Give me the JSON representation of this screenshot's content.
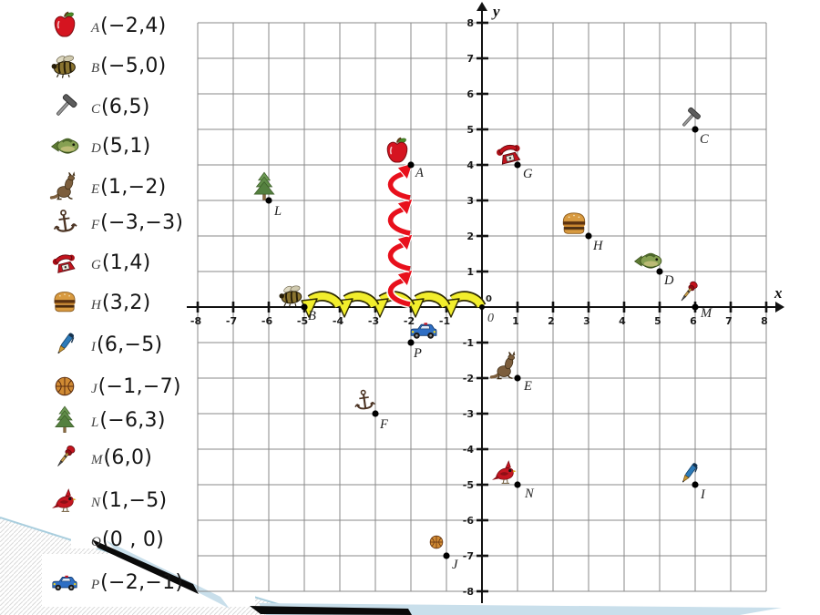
{
  "legend": {
    "items": [
      {
        "id": "A",
        "icon": "apple-icon",
        "letter": "A",
        "coords": "(−2,4)"
      },
      {
        "id": "B",
        "icon": "bee-icon",
        "letter": "B",
        "coords": "(−5,0)"
      },
      {
        "id": "C",
        "icon": "hammer-icon",
        "letter": "C",
        "coords": "(6,5)"
      },
      {
        "id": "D",
        "icon": "fish-icon",
        "letter": "D",
        "coords": "(5,1)"
      },
      {
        "id": "E",
        "icon": "kangaroo-icon",
        "letter": "E",
        "coords": "(1,−2)"
      },
      {
        "id": "F",
        "icon": "anchor-icon",
        "letter": "F",
        "coords": "(−3,−3)"
      },
      {
        "id": "G",
        "icon": "telephone-icon",
        "letter": "G",
        "coords": "(1,4)"
      },
      {
        "id": "H",
        "icon": "hamburger-icon",
        "letter": "H",
        "coords": "(3,2)"
      },
      {
        "id": "I",
        "icon": "pen-icon",
        "letter": "I",
        "coords": "(6,−5)"
      },
      {
        "id": "J",
        "icon": "basketball-icon",
        "letter": "J",
        "coords": "(−1,−7)"
      },
      {
        "id": "L",
        "icon": "tree-icon",
        "letter": "L",
        "coords": "(−6,3)"
      },
      {
        "id": "M",
        "icon": "dart-icon",
        "letter": "M",
        "coords": "(6,0)"
      },
      {
        "id": "N",
        "icon": "cardinal-icon",
        "letter": "N",
        "coords": "(1,−5)"
      },
      {
        "id": "O",
        "icon": null,
        "letter": "O",
        "coords": "(0 , 0)"
      },
      {
        "id": "P",
        "icon": "police-car-icon",
        "letter": "P",
        "coords": "(−2,−1)"
      }
    ]
  },
  "graph": {
    "x_axis_label": "x",
    "y_axis_label": "y",
    "origin_tick_label": "0",
    "origin_letter": "0",
    "x_ticks": [
      -8,
      -7,
      -6,
      -5,
      -4,
      -3,
      -2,
      -1,
      1,
      2,
      3,
      4,
      5,
      6,
      7,
      8
    ],
    "y_ticks": [
      -8,
      -7,
      -6,
      -5,
      -4,
      -3,
      -2,
      -1,
      1,
      2,
      3,
      4,
      5,
      6,
      7,
      8
    ],
    "xlim": [
      -8,
      8
    ],
    "ylim": [
      -8,
      8
    ]
  },
  "arrows": {
    "horizontal_hops": {
      "color": "#f2ee2c",
      "outline": "#2e2a00",
      "y": 0,
      "from_x": 0,
      "to_x": -5,
      "hops": 5,
      "direction": "left"
    },
    "vertical_hops": {
      "color": "#e8101c",
      "outline": "#ffffff",
      "x": -2,
      "from_y": 0,
      "to_y": 4,
      "hops": 4,
      "direction": "up"
    }
  },
  "colors": {
    "background": "#ffffff",
    "grid_line": "#8a8a8a",
    "axis": "#121212",
    "tick_label": "#1b1b1b",
    "point_dot": "#000000",
    "hatch": "#d9d9d9",
    "ribbon_black": "#0a0a0a",
    "ribbon_blue": "#c9dfeb"
  },
  "chart_data": {
    "type": "scatter",
    "title": "",
    "xlabel": "x",
    "ylabel": "y",
    "xlim": [
      -8,
      8
    ],
    "ylim": [
      -8,
      8
    ],
    "grid": true,
    "points": [
      {
        "label": "A",
        "x": -2,
        "y": 4,
        "icon": "apple-icon"
      },
      {
        "label": "B",
        "x": -5,
        "y": 0,
        "icon": "bee-icon"
      },
      {
        "label": "C",
        "x": 6,
        "y": 5,
        "icon": "hammer-icon"
      },
      {
        "label": "D",
        "x": 5,
        "y": 1,
        "icon": "fish-icon"
      },
      {
        "label": "E",
        "x": 1,
        "y": -2,
        "icon": "kangaroo-icon"
      },
      {
        "label": "F",
        "x": -3,
        "y": -3,
        "icon": "anchor-icon"
      },
      {
        "label": "G",
        "x": 1,
        "y": 4,
        "icon": "telephone-icon"
      },
      {
        "label": "H",
        "x": 3,
        "y": 2,
        "icon": "hamburger-icon"
      },
      {
        "label": "I",
        "x": 6,
        "y": -5,
        "icon": "pen-icon"
      },
      {
        "label": "J",
        "x": -1,
        "y": -7,
        "icon": "basketball-icon"
      },
      {
        "label": "L",
        "x": -6,
        "y": 3,
        "icon": "tree-icon"
      },
      {
        "label": "M",
        "x": 6,
        "y": 0,
        "icon": "dart-icon"
      },
      {
        "label": "N",
        "x": 1,
        "y": -5,
        "icon": "cardinal-icon"
      },
      {
        "label": "O",
        "x": 0,
        "y": 0,
        "icon": null
      },
      {
        "label": "P",
        "x": -2,
        "y": -1,
        "icon": "police-car-icon"
      }
    ],
    "annotations": [
      "five yellow hop arrows along the x-axis from 0 to -5",
      "four red hop arrows climbing the line x = -2 from y 0 to 4"
    ]
  }
}
